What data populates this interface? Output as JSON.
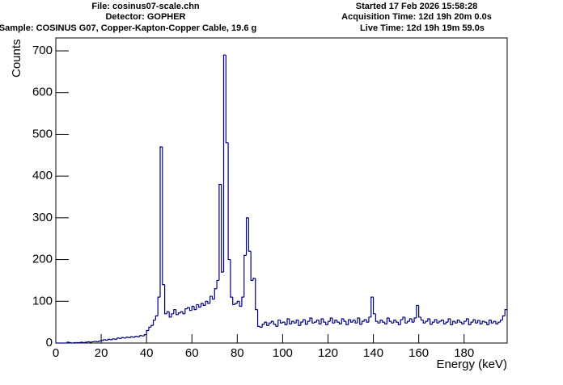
{
  "header": {
    "left": [
      "File: cosinus07-scale.chn",
      "Detector: GOPHER",
      "Sample: COSINUS G07, Copper-Kapton-Copper Cable, 19.6 g"
    ],
    "right": [
      "Started 17 Feb 2026 15:58:28",
      "Acquisition Time: 12d 19h 20m 0.0s",
      "Live Time: 12d 19h 19m 59.0s"
    ]
  },
  "chart_data": {
    "type": "histogram",
    "x_label": "Energy (keV)",
    "y_label": "Counts",
    "color": "#000080",
    "xlim": [
      0,
      199
    ],
    "ylim": [
      0,
      731
    ],
    "xticks": [
      0,
      20,
      40,
      60,
      80,
      100,
      120,
      140,
      160,
      180
    ],
    "yticks": [
      0,
      100,
      200,
      300,
      400,
      500,
      600,
      700
    ],
    "bins": [
      0,
      1,
      2,
      3,
      4,
      5,
      6,
      7,
      8,
      9,
      10,
      11,
      12,
      13,
      14,
      15,
      16,
      17,
      18,
      19,
      20,
      21,
      22,
      23,
      24,
      25,
      26,
      27,
      28,
      29,
      30,
      31,
      32,
      33,
      34,
      35,
      36,
      37,
      38,
      39,
      40,
      41,
      42,
      43,
      44,
      45,
      46,
      47,
      48,
      49,
      50,
      51,
      52,
      53,
      54,
      55,
      56,
      57,
      58,
      59,
      60,
      61,
      62,
      63,
      64,
      65,
      66,
      67,
      68,
      69,
      70,
      71,
      72,
      73,
      74,
      75,
      76,
      77,
      78,
      79,
      80,
      81,
      82,
      83,
      84,
      85,
      86,
      87,
      88,
      89,
      90,
      91,
      92,
      93,
      94,
      95,
      96,
      97,
      98,
      99,
      100,
      101,
      102,
      103,
      104,
      105,
      106,
      107,
      108,
      109,
      110,
      111,
      112,
      113,
      114,
      115,
      116,
      117,
      118,
      119,
      120,
      121,
      122,
      123,
      124,
      125,
      126,
      127,
      128,
      129,
      130,
      131,
      132,
      133,
      134,
      135,
      136,
      137,
      138,
      139,
      140,
      141,
      142,
      143,
      144,
      145,
      146,
      147,
      148,
      149,
      150,
      151,
      152,
      153,
      154,
      155,
      156,
      157,
      158,
      159,
      160,
      161,
      162,
      163,
      164,
      165,
      166,
      167,
      168,
      169,
      170,
      171,
      172,
      173,
      174,
      175,
      176,
      177,
      178,
      179,
      180,
      181,
      182,
      183,
      184,
      185,
      186,
      187,
      188,
      189,
      190,
      191,
      192,
      193,
      194,
      195,
      196,
      197,
      198,
      199
    ],
    "values": [
      0,
      0,
      0,
      0,
      0,
      2,
      1,
      0,
      1,
      1,
      1,
      2,
      1,
      2,
      3,
      2,
      3,
      4,
      3,
      5,
      6,
      8,
      7,
      9,
      8,
      10,
      9,
      12,
      11,
      13,
      12,
      14,
      13,
      15,
      14,
      16,
      15,
      18,
      17,
      20,
      30,
      38,
      42,
      55,
      65,
      110,
      470,
      140,
      70,
      75,
      62,
      70,
      80,
      68,
      72,
      75,
      70,
      82,
      85,
      78,
      88,
      80,
      92,
      86,
      95,
      90,
      100,
      95,
      112,
      105,
      130,
      150,
      380,
      170,
      690,
      480,
      200,
      110,
      92,
      95,
      100,
      88,
      110,
      210,
      300,
      220,
      150,
      155,
      80,
      40,
      38,
      45,
      50,
      42,
      48,
      52,
      45,
      40,
      55,
      48,
      50,
      44,
      58,
      46,
      52,
      48,
      55,
      42,
      50,
      56,
      45,
      52,
      60,
      48,
      50,
      55,
      46,
      58,
      50,
      44,
      52,
      60,
      48,
      55,
      50,
      46,
      58,
      52,
      44,
      56,
      50,
      55,
      48,
      60,
      45,
      52,
      56,
      50,
      62,
      110,
      70,
      52,
      48,
      55,
      50,
      46,
      60,
      52,
      48,
      55,
      50,
      44,
      56,
      62,
      48,
      52,
      58,
      50,
      60,
      90,
      62,
      55,
      48,
      52,
      58,
      45,
      50,
      56,
      48,
      52,
      55,
      46,
      50,
      58,
      44,
      52,
      48,
      55,
      50,
      46,
      52,
      58,
      44,
      50,
      56,
      48,
      54,
      46,
      52,
      50,
      44,
      55,
      48,
      52,
      46,
      50,
      55,
      65,
      80
    ]
  }
}
